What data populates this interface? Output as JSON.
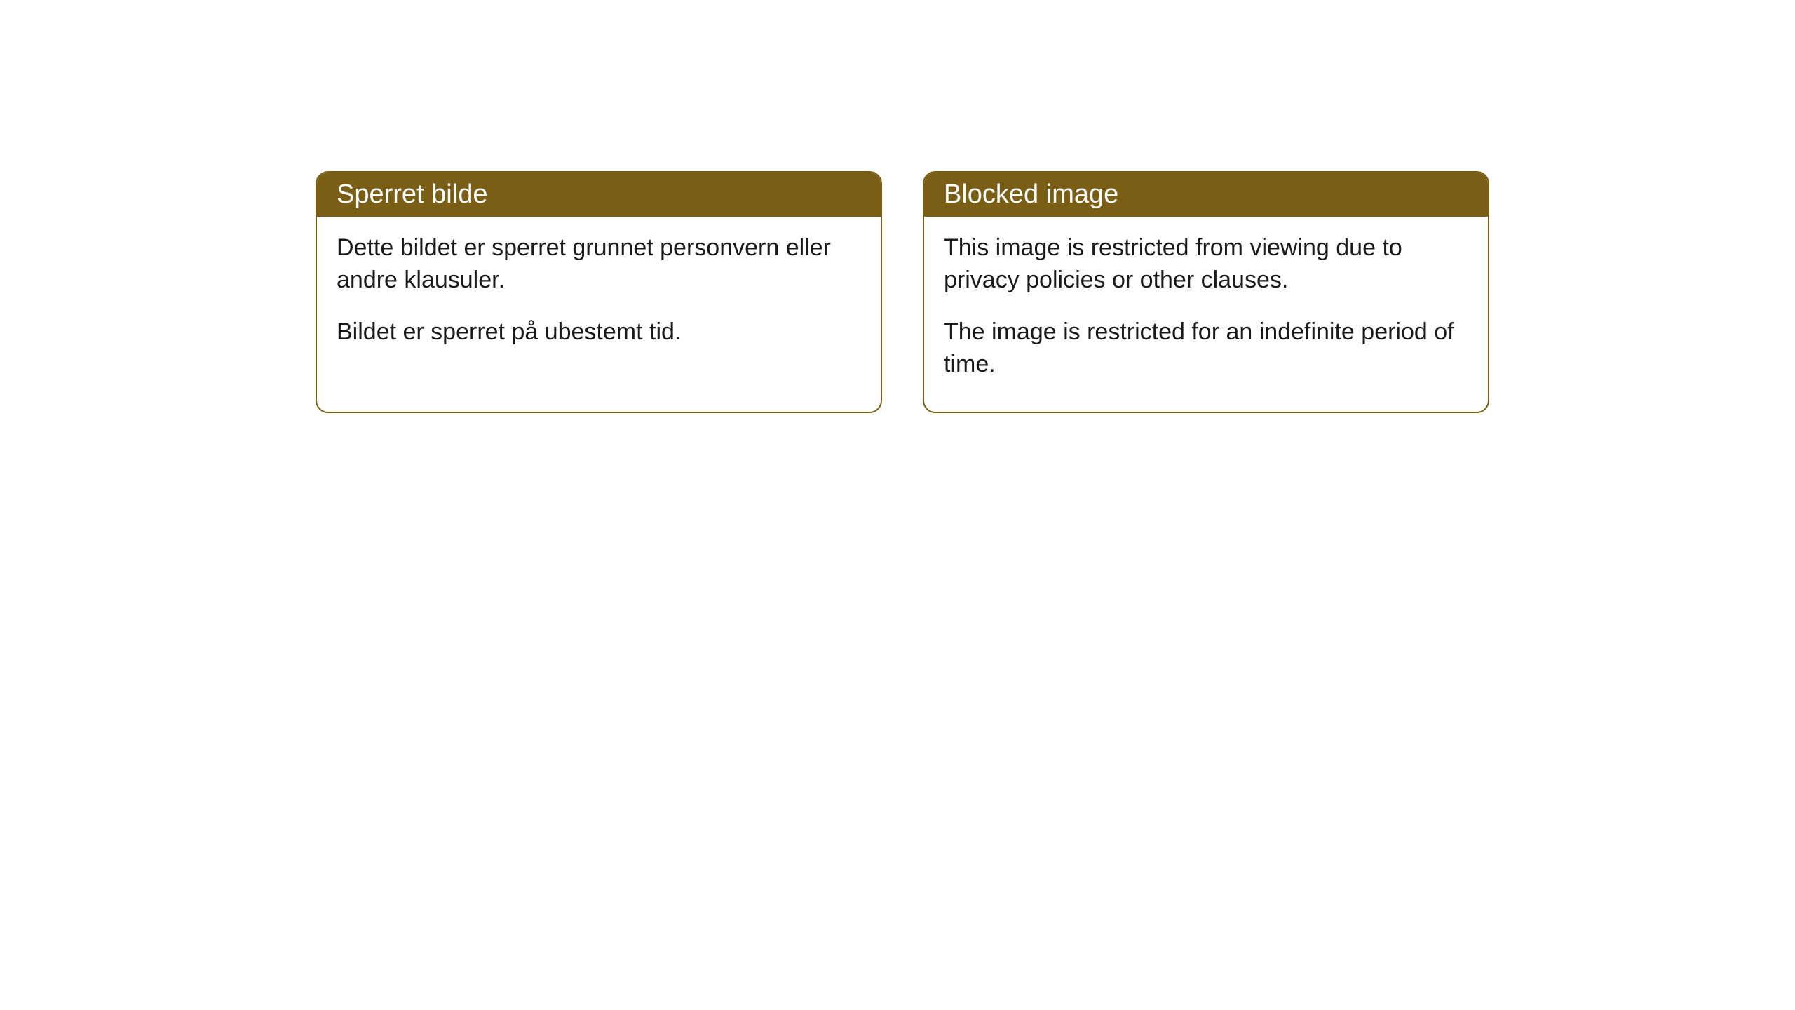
{
  "cards": {
    "norwegian": {
      "title": "Sperret bilde",
      "para1": "Dette bildet er sperret grunnet personvern eller andre klausuler.",
      "para2": "Bildet er sperret på ubestemt tid."
    },
    "english": {
      "title": "Blocked image",
      "para1": "This image is restricted from viewing due to privacy policies or other clauses.",
      "para2": "The image is restricted for an indefinite period of time."
    }
  },
  "style": {
    "header_bg": "#7a5e15",
    "header_text": "#ffffff",
    "border_color": "#7a5e15",
    "body_bg": "#ffffff",
    "body_text": "#1a1a1a",
    "border_radius": 18,
    "title_fontsize": 38,
    "body_fontsize": 34
  }
}
